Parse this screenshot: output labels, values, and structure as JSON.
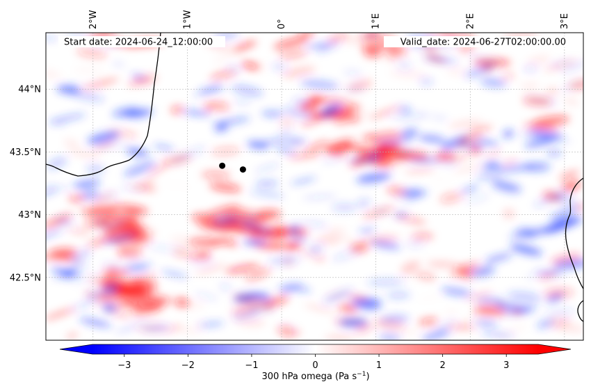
{
  "map": {
    "start_label": "Start date: 2024-06-24_12:00:00",
    "valid_label": "Valid_date: 2024-06-27T02:00:00.00",
    "lon_labels": [
      {
        "lon": -2,
        "text": "2°W"
      },
      {
        "lon": -1,
        "text": "1°W"
      },
      {
        "lon": 0,
        "text": "0°"
      },
      {
        "lon": 1,
        "text": "1°E"
      },
      {
        "lon": 2,
        "text": "2°E"
      },
      {
        "lon": 3,
        "text": "3°E"
      }
    ],
    "lat_labels": [
      {
        "lat": 44.0,
        "text": "44°N"
      },
      {
        "lat": 43.5,
        "text": "43.5°N"
      },
      {
        "lat": 43.0,
        "text": "43°N"
      },
      {
        "lat": 42.5,
        "text": "42.5°N"
      }
    ],
    "extent": {
      "lon_min": -2.5,
      "lon_max": 3.2,
      "lat_min": 42.0,
      "lat_max": 44.45
    },
    "points": [
      {
        "lon": -0.63,
        "lat": 43.39
      },
      {
        "lon": -0.41,
        "lat": 43.36
      }
    ],
    "colors": {
      "neg": "#0000ff",
      "mid": "#ffffff",
      "pos": "#ff0000",
      "coast": "#000000",
      "grid": "#b4b4b4"
    }
  },
  "colorbar": {
    "label": "300 hPa omega (Pa s",
    "label_exp": "−1",
    "label_close": ")",
    "vmin": -3.5,
    "vmax": 3.5,
    "ticks": [
      {
        "v": -3,
        "text": "−3"
      },
      {
        "v": -2,
        "text": "−2"
      },
      {
        "v": -1,
        "text": "−1"
      },
      {
        "v": 0,
        "text": "0"
      },
      {
        "v": 1,
        "text": "1"
      },
      {
        "v": 2,
        "text": "2"
      },
      {
        "v": 3,
        "text": "3"
      }
    ]
  }
}
